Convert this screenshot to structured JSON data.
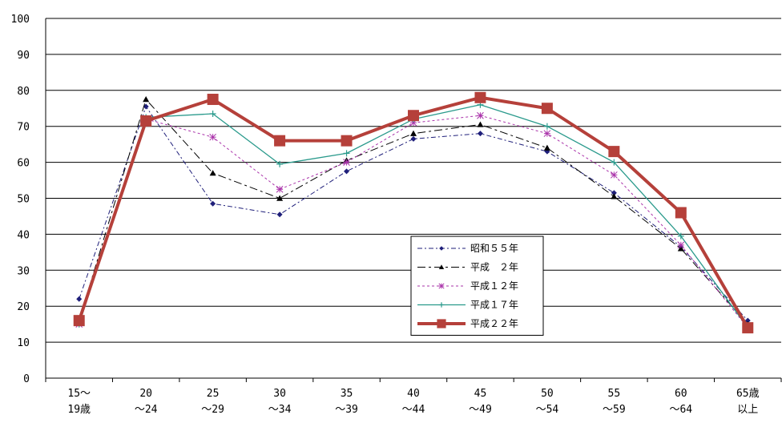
{
  "chart_data": {
    "type": "line",
    "title": "",
    "xlabel": "",
    "ylabel": "",
    "ylim": [
      0,
      100
    ],
    "yticks": [
      0,
      10,
      20,
      30,
      40,
      50,
      60,
      70,
      80,
      90,
      100
    ],
    "grid": "horizontal",
    "legend_position": "lower-middle-right",
    "categories": [
      [
        "15～",
        "19歳"
      ],
      [
        "20",
        "～24"
      ],
      [
        "25",
        "～29"
      ],
      [
        "30",
        "～34"
      ],
      [
        "35",
        "～39"
      ],
      [
        "40",
        "～44"
      ],
      [
        "45",
        "～49"
      ],
      [
        "50",
        "～54"
      ],
      [
        "55",
        "～59"
      ],
      [
        "60",
        "～64"
      ],
      [
        "65歳",
        "以上"
      ]
    ],
    "series": [
      {
        "name": "昭和５５年",
        "color": "#1f1f7a",
        "dash": "6,3,2,3",
        "marker": "diamond",
        "width": 1,
        "values": [
          22,
          75.5,
          48.5,
          45.5,
          57.5,
          66.5,
          68,
          63,
          51.5,
          36.5,
          16
        ]
      },
      {
        "name": "平成　２年",
        "color": "#000000",
        "dash": "10,4,3,4",
        "marker": "triangle",
        "width": 1,
        "values": [
          16,
          77.5,
          57,
          50,
          60.5,
          68,
          70.5,
          64,
          50.5,
          36,
          15
        ]
      },
      {
        "name": "平成１２年",
        "color": "#aa33aa",
        "dash": "3,3",
        "marker": "asterisk",
        "width": 1,
        "values": [
          15,
          72,
          67,
          52.5,
          60,
          71,
          73,
          68,
          56.5,
          37,
          14
        ]
      },
      {
        "name": "平成１７年",
        "color": "#2a9a8c",
        "dash": "",
        "marker": "plus",
        "width": 1.3,
        "values": [
          15,
          72.5,
          73.5,
          59.5,
          62.5,
          72,
          76,
          70,
          60,
          39.5,
          14
        ]
      },
      {
        "name": "平成２２年",
        "color": "#b5403a",
        "dash": "",
        "marker": "square",
        "width": 4,
        "values": [
          16,
          71.5,
          77.5,
          66,
          66,
          73,
          78,
          75,
          63,
          46,
          14
        ]
      }
    ]
  }
}
